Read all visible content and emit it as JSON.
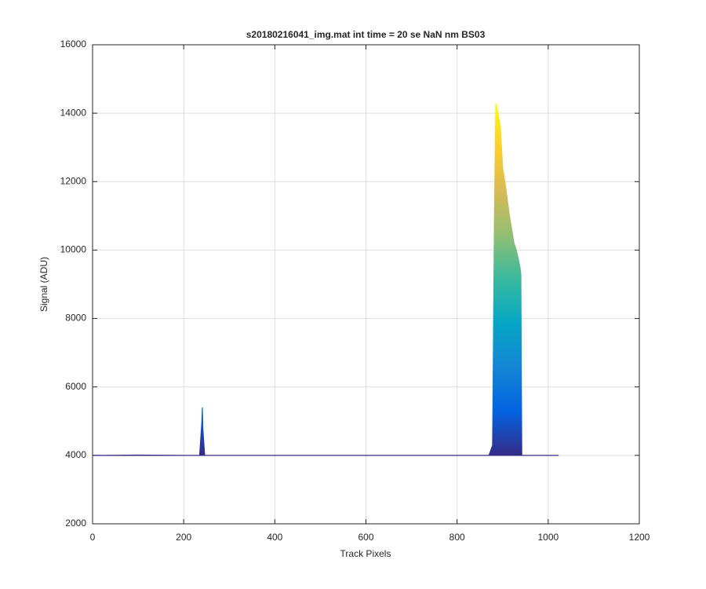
{
  "chart_data": {
    "type": "area",
    "title": "s20180216041_img.mat int time = 20 se  NaN nm BS03",
    "xlabel": "Track Pixels",
    "ylabel": "Signal (ADU)",
    "x": [
      0,
      100,
      200,
      235,
      238,
      240,
      241,
      242,
      244,
      246,
      300,
      400,
      500,
      600,
      700,
      800,
      870,
      878,
      882,
      885,
      890,
      895,
      900,
      905,
      910,
      915,
      920,
      925,
      930,
      935,
      938,
      940,
      942,
      950,
      1023
    ],
    "values": [
      4000,
      4010,
      4000,
      4000,
      4600,
      5000,
      5400,
      4800,
      4400,
      4000,
      4000,
      4000,
      4000,
      4000,
      4000,
      4000,
      4000,
      4300,
      11000,
      14300,
      14000,
      13600,
      12400,
      12000,
      11500,
      11000,
      10600,
      10200,
      10000,
      9700,
      9500,
      9300,
      4000,
      4000,
      4000
    ],
    "colormap": [
      "#352a87",
      "#0363e1",
      "#1485d4",
      "#06a7c6",
      "#38b99e",
      "#92bf73",
      "#d9ba56",
      "#fcce2e",
      "#f9fb0e"
    ],
    "xlim": [
      0,
      1200
    ],
    "xticks": [
      0,
      200,
      400,
      600,
      800,
      1000,
      1200
    ],
    "ylim": [
      2000,
      16000
    ],
    "yticks": [
      2000,
      4000,
      6000,
      8000,
      10000,
      12000,
      14000,
      16000
    ],
    "grid": true
  }
}
